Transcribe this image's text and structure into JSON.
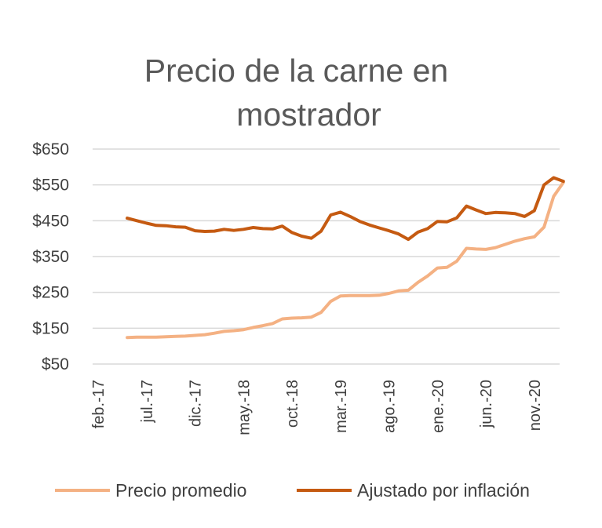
{
  "chart_data": {
    "type": "line",
    "title_lines": [
      "Precio de la carne en",
      "mostrador"
    ],
    "y_tick_labels": [
      "$650",
      "$550",
      "$450",
      "$350",
      "$250",
      "$150",
      "$50"
    ],
    "y_ticks": [
      650,
      550,
      450,
      350,
      250,
      150,
      50
    ],
    "ylim": [
      50,
      650
    ],
    "x_tick_labels": [
      "feb.-17",
      "jul.-17",
      "dic.-17",
      "may.-18",
      "oct.-18",
      "mar.-19",
      "ago.-19",
      "ene.-20",
      "jun.-20",
      "nov.-20"
    ],
    "x_tick_positions": [
      0,
      5,
      10,
      15,
      20,
      25,
      30,
      35,
      40,
      45
    ],
    "x_range": [
      0,
      49
    ],
    "gridlines": true,
    "legend_position": "bottom",
    "series": [
      {
        "name": "Precio promedio",
        "color": "#F4B183",
        "x": [
          3,
          4,
          5,
          6,
          7,
          8,
          9,
          10,
          11,
          12,
          13,
          14,
          15,
          16,
          17,
          18,
          19,
          20,
          21,
          22,
          23,
          24,
          25,
          26,
          27,
          28,
          29,
          30,
          31,
          32,
          33,
          34,
          35,
          36,
          37,
          38,
          39,
          40,
          41,
          42,
          43,
          44,
          45,
          46,
          47,
          48
        ],
        "values": [
          124,
          125,
          125,
          125,
          126,
          127,
          128,
          130,
          132,
          136,
          141,
          143,
          146,
          152,
          157,
          163,
          176,
          178,
          179,
          181,
          194,
          225,
          240,
          241,
          241,
          241,
          242,
          247,
          254,
          256,
          278,
          296,
          318,
          320,
          337,
          373,
          371,
          370,
          375,
          384,
          393,
          400,
          405,
          432,
          518,
          557
        ]
      },
      {
        "name": "Ajustado por inflación",
        "color": "#C55A11",
        "x": [
          3,
          4,
          5,
          6,
          7,
          8,
          9,
          10,
          11,
          12,
          13,
          14,
          15,
          16,
          17,
          18,
          19,
          20,
          21,
          22,
          23,
          24,
          25,
          26,
          27,
          28,
          29,
          30,
          31,
          32,
          33,
          34,
          35,
          36,
          37,
          38,
          39,
          40,
          41,
          42,
          43,
          44,
          45,
          46,
          47,
          48
        ],
        "values": [
          457,
          450,
          443,
          437,
          436,
          433,
          432,
          422,
          420,
          421,
          426,
          423,
          426,
          431,
          428,
          427,
          435,
          417,
          407,
          401,
          421,
          466,
          474,
          462,
          448,
          438,
          430,
          422,
          413,
          398,
          418,
          428,
          448,
          447,
          458,
          491,
          480,
          470,
          473,
          472,
          470,
          462,
          478,
          550,
          570,
          560
        ]
      }
    ]
  }
}
